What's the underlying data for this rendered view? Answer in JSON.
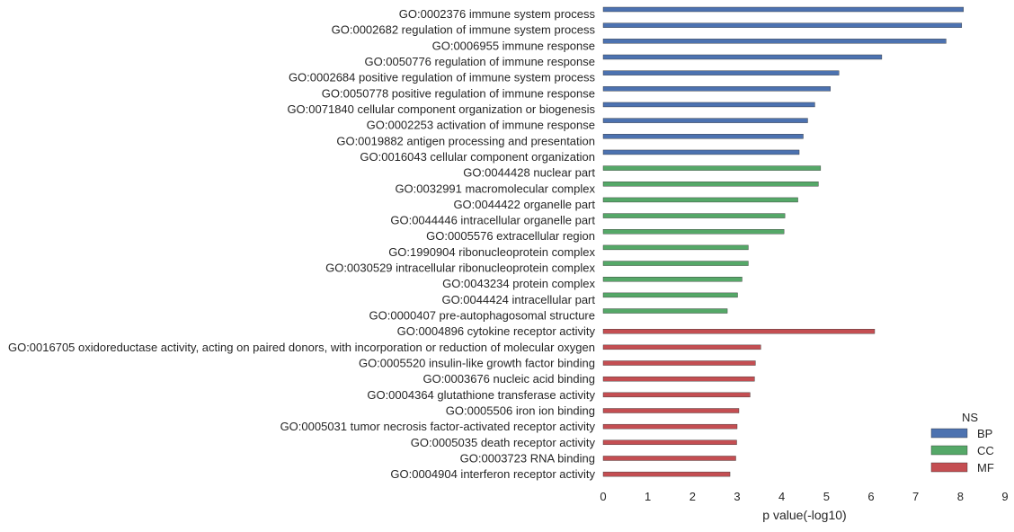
{
  "chart_data": {
    "type": "bar",
    "orientation": "horizontal",
    "xlabel": "p value(-log10)",
    "ylabel": "",
    "xlim": [
      0,
      9
    ],
    "xticks": [
      "0",
      "1",
      "2",
      "3",
      "4",
      "5",
      "6",
      "7",
      "8",
      "9"
    ],
    "grid": false,
    "legend": {
      "title": "NS",
      "placement": "bottom-right",
      "entries": [
        {
          "name": "BP",
          "color": "#4c72b0"
        },
        {
          "name": "CC",
          "color": "#55a868"
        },
        {
          "name": "MF",
          "color": "#c44e52"
        }
      ]
    },
    "categories": [
      "GO:0002376 immune system process",
      "GO:0002682 regulation of immune system process",
      "GO:0006955 immune response",
      "GO:0050776 regulation of immune response",
      "GO:0002684 positive regulation of immune system process",
      "GO:0050778 positive regulation of immune response",
      "GO:0071840 cellular component organization or biogenesis",
      "GO:0002253 activation of immune response",
      "GO:0019882 antigen processing and presentation",
      "GO:0016043 cellular component organization",
      "GO:0044428 nuclear part",
      "GO:0032991 macromolecular complex",
      "GO:0044422 organelle part",
      "GO:0044446 intracellular organelle part",
      "GO:0005576 extracellular region",
      "GO:1990904 ribonucleoprotein complex",
      "GO:0030529 intracellular ribonucleoprotein complex",
      "GO:0043234 protein complex",
      "GO:0044424 intracellular part",
      "GO:0000407 pre-autophagosomal structure",
      "GO:0004896 cytokine receptor activity",
      "GO:0016705 oxidoreductase activity, acting on paired donors, with incorporation or reduction of molecular oxygen",
      "GO:0005520 insulin-like growth factor binding",
      "GO:0003676 nucleic acid binding",
      "GO:0004364 glutathione transferase activity",
      "GO:0005506 iron ion binding",
      "GO:0005031 tumor necrosis factor-activated receptor activity",
      "GO:0005035 death receptor activity",
      "GO:0003723 RNA binding",
      "GO:0004904 interferon receptor activity"
    ],
    "groups": [
      "BP",
      "BP",
      "BP",
      "BP",
      "BP",
      "BP",
      "BP",
      "BP",
      "BP",
      "BP",
      "CC",
      "CC",
      "CC",
      "CC",
      "CC",
      "CC",
      "CC",
      "CC",
      "CC",
      "CC",
      "MF",
      "MF",
      "MF",
      "MF",
      "MF",
      "MF",
      "MF",
      "MF",
      "MF",
      "MF"
    ],
    "values": [
      8.07,
      8.03,
      7.68,
      6.24,
      5.28,
      5.09,
      4.74,
      4.58,
      4.48,
      4.39,
      4.87,
      4.82,
      4.36,
      4.07,
      4.05,
      3.25,
      3.25,
      3.11,
      3.01,
      2.78,
      6.08,
      3.53,
      3.41,
      3.39,
      3.29,
      3.04,
      3.0,
      2.99,
      2.97,
      2.84
    ]
  }
}
